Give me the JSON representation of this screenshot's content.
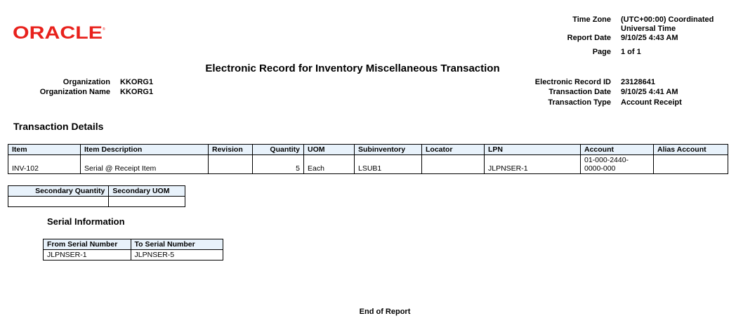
{
  "logo": {
    "text": "ORACLE",
    "color": "#e8211c"
  },
  "header": {
    "title": "Electronic Record for Inventory Miscellaneous Transaction",
    "left": [
      {
        "label": "Organization",
        "value": "KKORG1"
      },
      {
        "label": "Organization Name",
        "value": "KKORG1"
      }
    ],
    "time_zone_label": "Time Zone",
    "time_zone_value_1": "(UTC+00:00) Coordinated",
    "time_zone_value_2": "Universal Time",
    "report_date_label": "Report Date",
    "report_date_value": "9/10/25 4:43 AM",
    "page_label": "Page",
    "page_value": "1 of 1",
    "right": [
      {
        "label": "Electronic Record ID",
        "value": "23128641"
      },
      {
        "label": "Transaction Date",
        "value": "9/10/25 4:41 AM"
      },
      {
        "label": "Transaction Type",
        "value": "Account Receipt"
      }
    ]
  },
  "transaction_details": {
    "heading": "Transaction Details",
    "columns": [
      "Item",
      "Item Description",
      "Revision",
      "Quantity",
      "UOM",
      "Subinventory",
      "Locator",
      "LPN",
      "Account",
      "Alias Account"
    ],
    "row": {
      "item": "INV-102",
      "description": "Serial @ Receipt Item",
      "revision": "",
      "quantity": "5",
      "uom": "Each",
      "subinventory": "LSUB1",
      "locator": "",
      "lpn": "JLPNSER-1",
      "account_1": "01-000-2440-",
      "account_2": "0000-000",
      "alias": ""
    },
    "secondary_columns": [
      "Secondary Quantity",
      "Secondary UOM"
    ]
  },
  "serial": {
    "heading": "Serial Information",
    "columns": [
      "From Serial Number",
      "To Serial Number"
    ],
    "rows": [
      {
        "from": "JLPNSER-1",
        "to": "JLPNSER-5"
      }
    ]
  },
  "footer": {
    "end": "End of Report"
  },
  "colors": {
    "header_bg": "#e8f2fb"
  }
}
